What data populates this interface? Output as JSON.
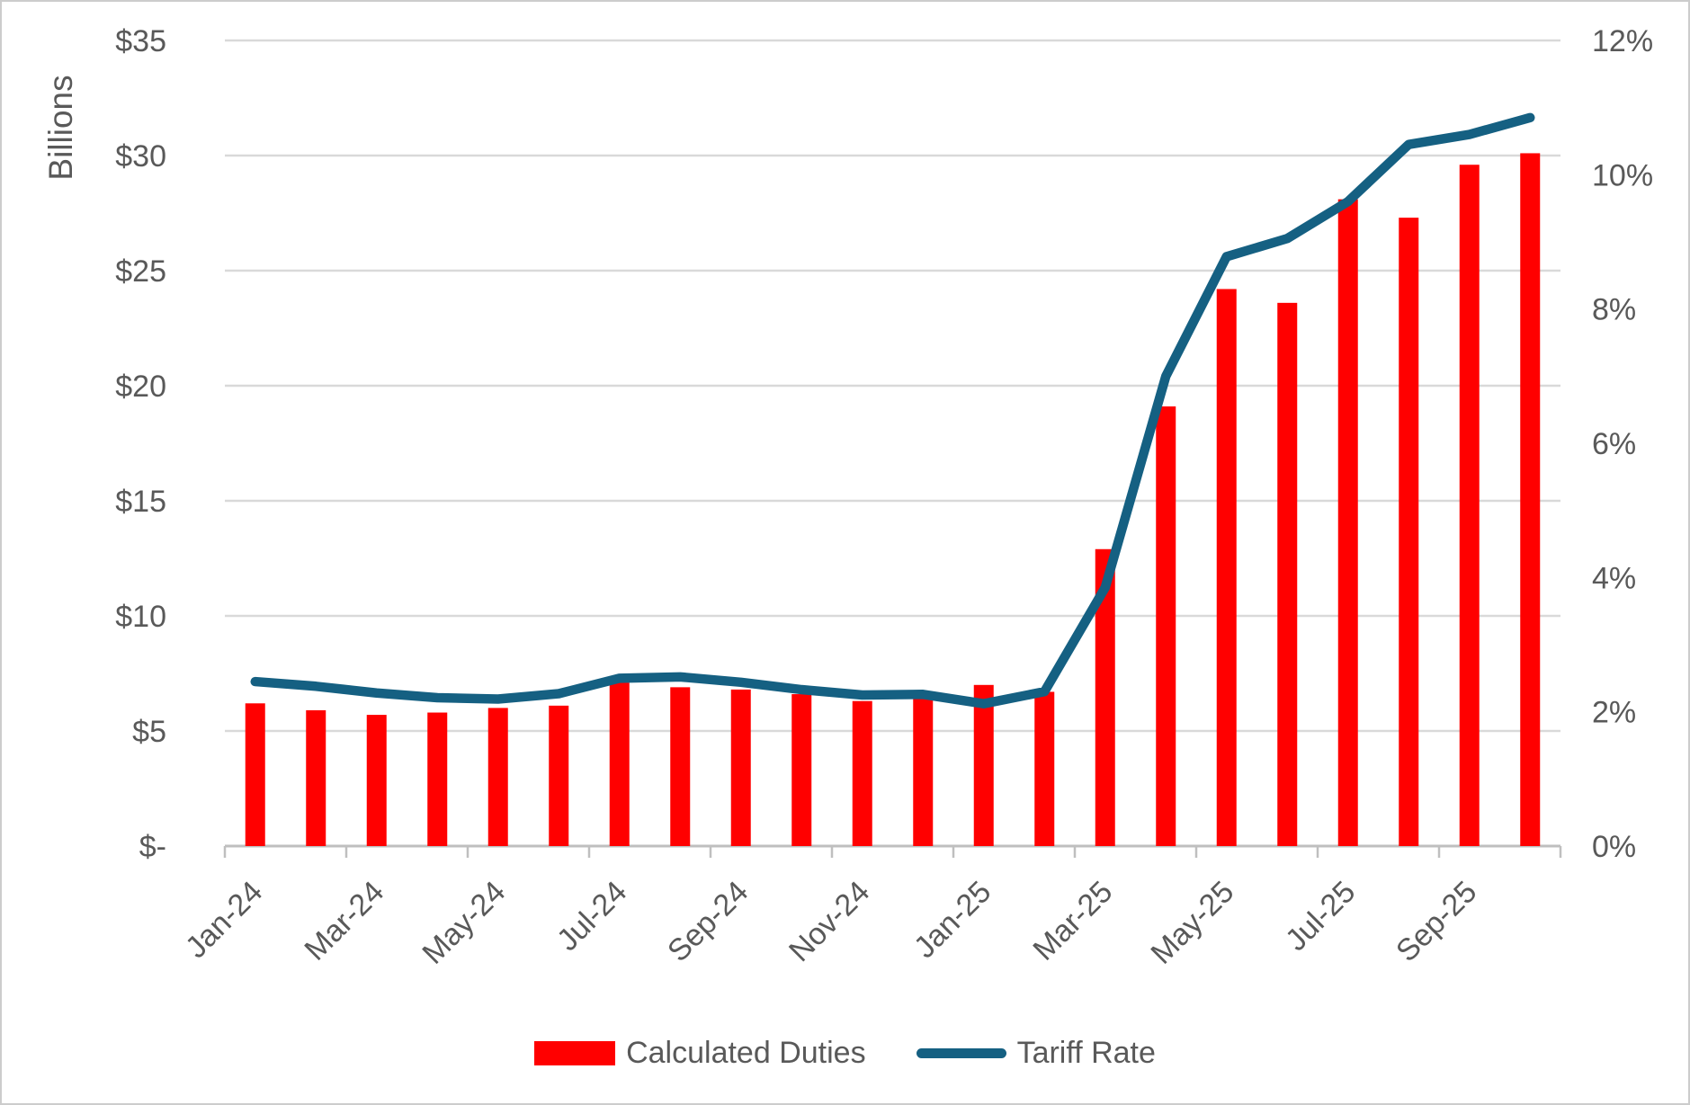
{
  "chart_data": {
    "type": "combo",
    "categories": [
      "Jan-24",
      "Feb-24",
      "Mar-24",
      "Apr-24",
      "May-24",
      "Jun-24",
      "Jul-24",
      "Aug-24",
      "Sep-24",
      "Oct-24",
      "Nov-24",
      "Dec-24",
      "Jan-25",
      "Feb-25",
      "Mar-25",
      "Apr-25",
      "May-25",
      "Jun-25",
      "Jul-25",
      "Aug-25",
      "Sep-25",
      "Oct-25"
    ],
    "x_tick_labels": [
      "Jan-24",
      "Mar-24",
      "May-24",
      "Jul-24",
      "Sep-24",
      "Nov-24",
      "Jan-25",
      "Mar-25",
      "May-25",
      "Jul-25",
      "Sep-25"
    ],
    "series": [
      {
        "name": "Calculated Duties",
        "type": "bar",
        "axis": "left",
        "color": "#FF0000",
        "values": [
          6.2,
          5.9,
          5.7,
          5.8,
          6.0,
          6.1,
          7.1,
          6.9,
          6.8,
          6.6,
          6.3,
          6.5,
          7.0,
          6.7,
          12.9,
          19.1,
          24.2,
          23.6,
          28.1,
          27.3,
          29.6,
          30.1
        ]
      },
      {
        "name": "Tariff Rate",
        "type": "line",
        "axis": "right",
        "color": "#156082",
        "values": [
          2.45,
          2.38,
          2.28,
          2.21,
          2.19,
          2.27,
          2.5,
          2.52,
          2.44,
          2.33,
          2.25,
          2.26,
          2.12,
          2.3,
          3.85,
          7.0,
          8.78,
          9.05,
          9.6,
          10.45,
          10.6,
          10.85
        ]
      }
    ],
    "left_axis": {
      "title": "Billions",
      "min": 0,
      "max": 35,
      "tick_values": [
        35,
        30,
        25,
        20,
        15,
        10,
        5,
        0
      ],
      "tick_labels": [
        "$35",
        "$30",
        "$25",
        "$20",
        "$15",
        "$10",
        "$5",
        "$-"
      ]
    },
    "right_axis": {
      "min": 0,
      "max": 12,
      "tick_values": [
        12,
        10,
        8,
        6,
        4,
        2,
        0
      ],
      "tick_labels": [
        "12%",
        "10%",
        "8%",
        "6%",
        "4%",
        "2%",
        "0%"
      ]
    },
    "grid": true,
    "legend_position": "bottom",
    "colors": {
      "grid": "#D9D9D9",
      "axis_line": "#BFBFBF",
      "text": "#595959",
      "background": "#FFFFFF"
    }
  }
}
